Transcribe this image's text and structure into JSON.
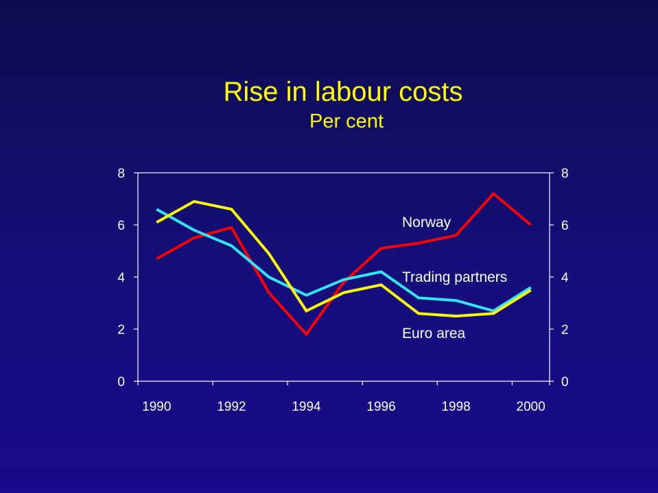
{
  "chart_data": {
    "type": "line",
    "title": "Rise in labour costs",
    "subtitle": "Per cent",
    "x": [
      1990,
      1991,
      1992,
      1993,
      1994,
      1995,
      1996,
      1997,
      1998,
      1999,
      2000
    ],
    "x_tick_labels": [
      "1990",
      "1992",
      "1994",
      "1996",
      "1998",
      "2000"
    ],
    "ylim": [
      0,
      8
    ],
    "y_tick_labels_left": [
      "0",
      "2",
      "4",
      "6",
      "8"
    ],
    "y_tick_labels_right": [
      "0",
      "2",
      "4",
      "6",
      "8"
    ],
    "grid": false,
    "series": [
      {
        "name": "Norway",
        "color": "#ff0000",
        "values": [
          4.7,
          5.5,
          5.9,
          3.4,
          1.8,
          3.8,
          5.1,
          5.3,
          5.6,
          7.2,
          6.0
        ]
      },
      {
        "name": "Trading partners",
        "color": "#33e5ff",
        "values": [
          6.6,
          5.8,
          5.2,
          4.0,
          3.3,
          3.9,
          4.2,
          3.2,
          3.1,
          2.7,
          3.6
        ]
      },
      {
        "name": "Euro area",
        "color": "#ffff00",
        "values": [
          6.1,
          6.9,
          6.6,
          4.9,
          2.7,
          3.4,
          3.7,
          2.6,
          2.5,
          2.6,
          3.5
        ]
      }
    ]
  }
}
